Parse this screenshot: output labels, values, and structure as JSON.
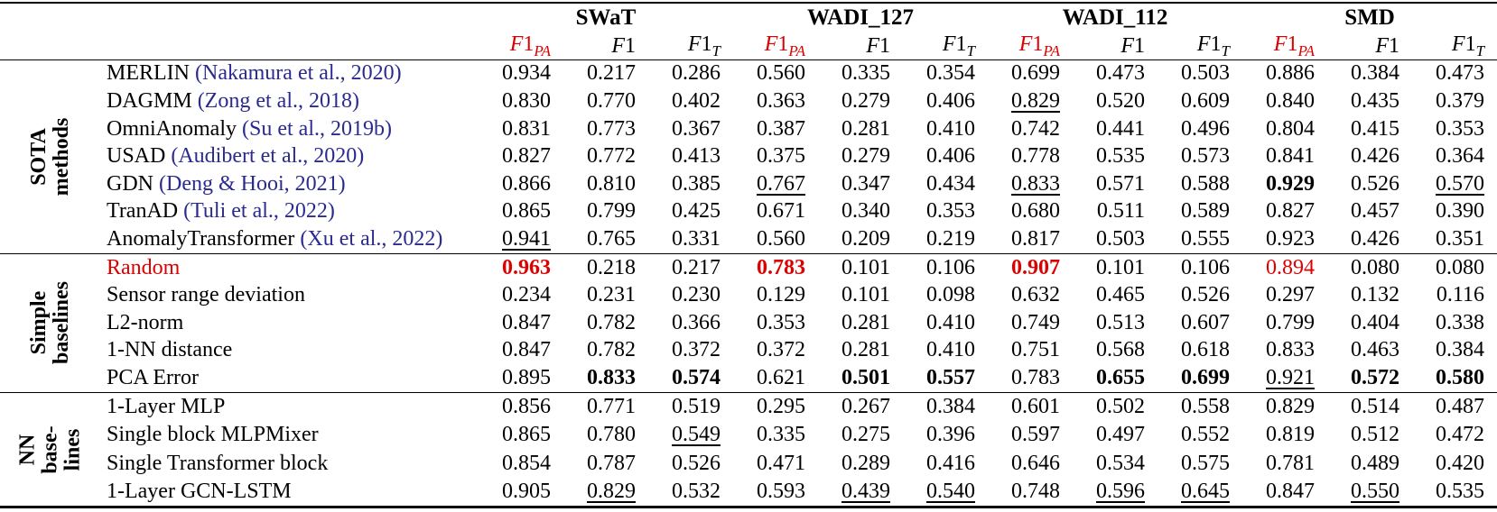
{
  "colors": {
    "highlight_red": "#dd0000",
    "citation_blue": "#2a2a8f",
    "text_black": "#000000"
  },
  "table": {
    "type": "table",
    "dataset_groups": [
      "SWaT",
      "WADI_127",
      "WADI_112",
      "SMD"
    ],
    "metric_headers": [
      {
        "f": "F",
        "one": "1",
        "sub": "PA",
        "red": true
      },
      {
        "f": "F",
        "one": "1",
        "sub": "",
        "red": false
      },
      {
        "f": "F",
        "one": "1",
        "sub": "T",
        "red": false
      }
    ],
    "cell_style_legend": "suffix after 5-char value: b=bold, u=underline, rb=red bold, r=red",
    "sections": [
      {
        "label_lines": [
          "SOTA",
          "methods"
        ],
        "rows": [
          {
            "method": "MERLIN ",
            "cite": "(Nakamura et al., 2020)",
            "red": false,
            "cells": [
              "0.934",
              "0.217",
              "0.286",
              "0.560",
              "0.335",
              "0.354",
              "0.699",
              "0.473",
              "0.503",
              "0.886",
              "0.384",
              "0.473"
            ]
          },
          {
            "method": "DAGMM ",
            "cite": "(Zong et al., 2018)",
            "red": false,
            "cells": [
              "0.830",
              "0.770",
              "0.402",
              "0.363",
              "0.279",
              "0.406",
              "0.829u",
              "0.520",
              "0.609",
              "0.840",
              "0.435",
              "0.379"
            ]
          },
          {
            "method": "OmniAnomaly ",
            "cite": "(Su et al., 2019b)",
            "red": false,
            "cells": [
              "0.831",
              "0.773",
              "0.367",
              "0.387",
              "0.281",
              "0.410",
              "0.742",
              "0.441",
              "0.496",
              "0.804",
              "0.415",
              "0.353"
            ]
          },
          {
            "method": "USAD ",
            "cite": "(Audibert et al., 2020)",
            "red": false,
            "cells": [
              "0.827",
              "0.772",
              "0.413",
              "0.375",
              "0.279",
              "0.406",
              "0.778",
              "0.535",
              "0.573",
              "0.841",
              "0.426",
              "0.364"
            ]
          },
          {
            "method": "GDN ",
            "cite": "(Deng & Hooi, 2021)",
            "red": false,
            "cells": [
              "0.866",
              "0.810",
              "0.385",
              "0.767u",
              "0.347",
              "0.434",
              "0.833u",
              "0.571",
              "0.588",
              "0.929b",
              "0.526",
              "0.570u"
            ]
          },
          {
            "method": "TranAD ",
            "cite": "(Tuli et al., 2022)",
            "red": false,
            "cells": [
              "0.865",
              "0.799",
              "0.425",
              "0.671",
              "0.340",
              "0.353",
              "0.680",
              "0.511",
              "0.589",
              "0.827",
              "0.457",
              "0.390"
            ]
          },
          {
            "method": "AnomalyTransformer ",
            "cite": "(Xu et al., 2022)",
            "red": false,
            "cells": [
              "0.941u",
              "0.765",
              "0.331",
              "0.560",
              "0.209",
              "0.219",
              "0.817",
              "0.503",
              "0.555",
              "0.923",
              "0.426",
              "0.351"
            ]
          }
        ]
      },
      {
        "label_lines": [
          "Simple",
          "baselines"
        ],
        "rows": [
          {
            "method": "Random",
            "cite": "",
            "red": true,
            "cells": [
              "0.963rb",
              "0.218",
              "0.217",
              "0.783rb",
              "0.101",
              "0.106",
              "0.907rb",
              "0.101",
              "0.106",
              "0.894r",
              "0.080",
              "0.080"
            ]
          },
          {
            "method": "Sensor range deviation",
            "cite": "",
            "red": false,
            "cells": [
              "0.234",
              "0.231",
              "0.230",
              "0.129",
              "0.101",
              "0.098",
              "0.632",
              "0.465",
              "0.526",
              "0.297",
              "0.132",
              "0.116"
            ]
          },
          {
            "method": "L2-norm",
            "cite": "",
            "red": false,
            "cells": [
              "0.847",
              "0.782",
              "0.366",
              "0.353",
              "0.281",
              "0.410",
              "0.749",
              "0.513",
              "0.607",
              "0.799",
              "0.404",
              "0.338"
            ]
          },
          {
            "method": "1-NN distance",
            "cite": "",
            "red": false,
            "cells": [
              "0.847",
              "0.782",
              "0.372",
              "0.372",
              "0.281",
              "0.410",
              "0.751",
              "0.568",
              "0.618",
              "0.833",
              "0.463",
              "0.384"
            ]
          },
          {
            "method": "PCA Error",
            "cite": "",
            "red": false,
            "cells": [
              "0.895",
              "0.833b",
              "0.574b",
              "0.621",
              "0.501b",
              "0.557b",
              "0.783",
              "0.655b",
              "0.699b",
              "0.921u",
              "0.572b",
              "0.580b"
            ]
          }
        ]
      },
      {
        "label_lines": [
          "NN",
          "base-",
          "lines"
        ],
        "rows": [
          {
            "method": "1-Layer MLP",
            "cite": "",
            "red": false,
            "cells": [
              "0.856",
              "0.771",
              "0.519",
              "0.295",
              "0.267",
              "0.384",
              "0.601",
              "0.502",
              "0.558",
              "0.829",
              "0.514",
              "0.487"
            ]
          },
          {
            "method": "Single block MLPMixer",
            "cite": "",
            "red": false,
            "cells": [
              "0.865",
              "0.780",
              "0.549u",
              "0.335",
              "0.275",
              "0.396",
              "0.597",
              "0.497",
              "0.552",
              "0.819",
              "0.512",
              "0.472"
            ]
          },
          {
            "method": "Single Transformer block",
            "cite": "",
            "red": false,
            "cells": [
              "0.854",
              "0.787",
              "0.526",
              "0.471",
              "0.289",
              "0.416",
              "0.646",
              "0.534",
              "0.575",
              "0.781",
              "0.489",
              "0.420"
            ]
          },
          {
            "method": "1-Layer GCN-LSTM",
            "cite": "",
            "red": false,
            "cells": [
              "0.905",
              "0.829u",
              "0.532",
              "0.593",
              "0.439u",
              "0.540u",
              "0.748",
              "0.596u",
              "0.645u",
              "0.847",
              "0.550u",
              "0.535"
            ]
          }
        ]
      }
    ]
  }
}
